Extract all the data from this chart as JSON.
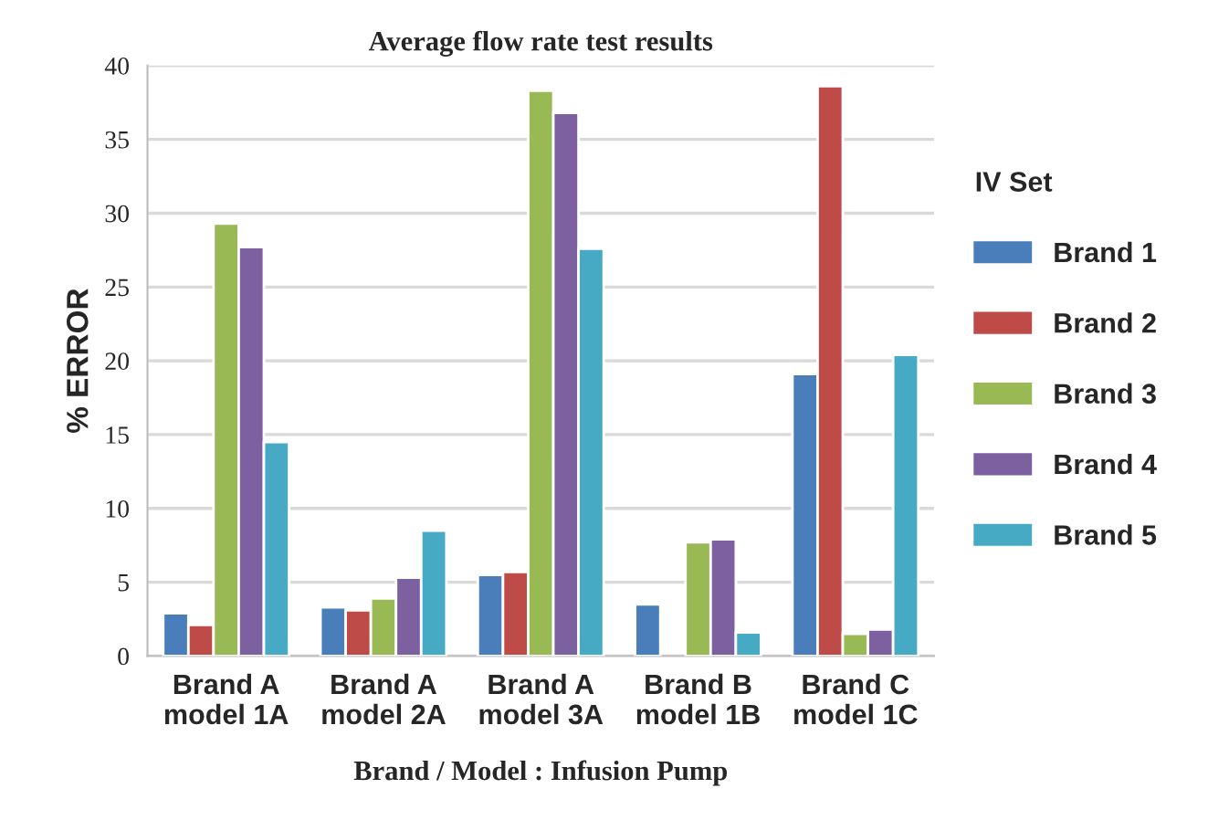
{
  "chart_data": {
    "type": "bar",
    "title": "Average flow rate test results",
    "xlabel": "Brand / Model : Infusion Pump",
    "ylabel": "% ERROR",
    "legend_title": "IV Set",
    "categories": [
      "Brand A\nmodel 1A",
      "Brand A\nmodel 2A",
      "Brand A\nmodel 3A",
      "Brand B\nmodel 1B",
      "Brand C\nmodel 1C"
    ],
    "series": [
      {
        "name": "Brand 1",
        "color": "#4a7ebb",
        "values": [
          2.9,
          3.3,
          5.5,
          3.5,
          19.1
        ]
      },
      {
        "name": "Brand 2",
        "color": "#be4b48",
        "values": [
          2.1,
          3.1,
          5.7,
          null,
          38.6
        ]
      },
      {
        "name": "Brand 3",
        "color": "#98b954",
        "values": [
          29.3,
          3.9,
          38.3,
          7.7,
          1.5
        ]
      },
      {
        "name": "Brand 4",
        "color": "#7d60a0",
        "values": [
          27.7,
          5.3,
          36.8,
          7.9,
          1.8
        ]
      },
      {
        "name": "Brand 5",
        "color": "#46aac5",
        "values": [
          14.5,
          8.5,
          27.6,
          1.6,
          20.4
        ]
      }
    ],
    "ylim": [
      0,
      40
    ],
    "yticks": [
      0,
      5,
      10,
      15,
      20,
      25,
      30,
      35,
      40
    ],
    "grid": "y",
    "legend": "right"
  }
}
